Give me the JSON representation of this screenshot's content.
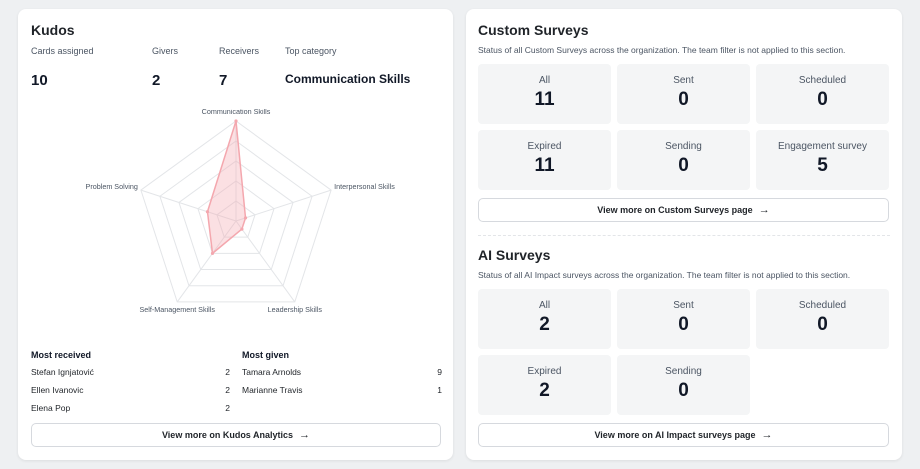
{
  "kudos": {
    "title": "Kudos",
    "stats": [
      {
        "label": "Cards assigned",
        "value": "10"
      },
      {
        "label": "Givers",
        "value": "2"
      },
      {
        "label": "Receivers",
        "value": "7"
      },
      {
        "label": "Top category",
        "value": "Communication Skills"
      }
    ],
    "chart_data": {
      "type": "radar",
      "axes": [
        "Communication Skills",
        "Interpersonal Skills",
        "Leadership Skills",
        "Self-Management Skills",
        "Problem Solving"
      ],
      "series": [
        {
          "values": [
            10,
            1,
            1,
            4,
            3
          ]
        }
      ],
      "range": [
        0,
        10
      ],
      "rings": 5,
      "color": "#f4a7ae"
    },
    "most_received": {
      "title": "Most received",
      "rows": [
        {
          "name": "Stefan Ignjatović",
          "count": "2"
        },
        {
          "name": "Ellen Ivanovic",
          "count": "2"
        },
        {
          "name": "Elena Pop",
          "count": "2"
        }
      ]
    },
    "most_given": {
      "title": "Most given",
      "rows": [
        {
          "name": "Tamara Arnolds",
          "count": "9"
        },
        {
          "name": "Marianne Travis",
          "count": "1"
        }
      ]
    },
    "view_more_label": "View more on Kudos Analytics"
  },
  "custom_surveys": {
    "title": "Custom Surveys",
    "description": "Status of all Custom Surveys across the organization. The team filter is not applied to this section.",
    "tiles": [
      {
        "label": "All",
        "value": "11"
      },
      {
        "label": "Sent",
        "value": "0"
      },
      {
        "label": "Scheduled",
        "value": "0"
      },
      {
        "label": "Expired",
        "value": "11"
      },
      {
        "label": "Sending",
        "value": "0"
      },
      {
        "label": "Engagement survey",
        "value": "5"
      }
    ],
    "view_more_label": "View more on Custom Surveys page"
  },
  "ai_surveys": {
    "title": "AI Surveys",
    "description": "Status of all AI Impact surveys across the organization. The team filter is not applied to this section.",
    "tiles": [
      {
        "label": "All",
        "value": "2"
      },
      {
        "label": "Sent",
        "value": "0"
      },
      {
        "label": "Scheduled",
        "value": "0"
      },
      {
        "label": "Expired",
        "value": "2"
      },
      {
        "label": "Sending",
        "value": "0"
      }
    ],
    "view_more_label": "View more on AI Impact surveys page"
  },
  "icons": {
    "arrow": "arrow-right-icon",
    "arrow_glyph": "→"
  }
}
